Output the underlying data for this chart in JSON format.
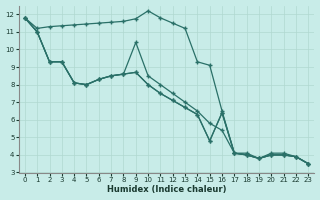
{
  "xlabel": "Humidex (Indice chaleur)",
  "bg_color": "#c8ece8",
  "line_color": "#2a7068",
  "grid_color": "#b0d8d0",
  "xlim": [
    -0.5,
    23.5
  ],
  "ylim": [
    3,
    12.5
  ],
  "xticks": [
    0,
    1,
    2,
    3,
    4,
    5,
    6,
    7,
    8,
    9,
    10,
    11,
    12,
    13,
    14,
    15,
    16,
    17,
    18,
    19,
    20,
    21,
    22,
    23
  ],
  "yticks": [
    3,
    4,
    5,
    6,
    7,
    8,
    9,
    10,
    11,
    12
  ],
  "line1_x": [
    0,
    1,
    2,
    3,
    4,
    5,
    6,
    7,
    8,
    9,
    10,
    11,
    12,
    13,
    14,
    15,
    16,
    17,
    18,
    19,
    20,
    21,
    22,
    23
  ],
  "line1_y": [
    11.8,
    11.2,
    11.3,
    11.35,
    11.4,
    11.45,
    11.5,
    11.55,
    11.6,
    11.75,
    12.2,
    11.8,
    11.5,
    11.2,
    9.3,
    9.1,
    6.5,
    4.1,
    4.1,
    3.8,
    4.1,
    4.1,
    3.9,
    3.5
  ],
  "line2_x": [
    0,
    1,
    2,
    3,
    4,
    5,
    6,
    7,
    8,
    9,
    10,
    11,
    12,
    13,
    14,
    15,
    16,
    17,
    18,
    19,
    20,
    21,
    22,
    23
  ],
  "line2_y": [
    11.8,
    11.0,
    9.3,
    9.3,
    8.1,
    8.0,
    8.3,
    8.5,
    8.6,
    8.7,
    8.0,
    7.5,
    7.1,
    6.7,
    6.3,
    4.8,
    6.4,
    4.1,
    4.0,
    3.8,
    4.0,
    4.0,
    3.9,
    3.5
  ],
  "line3_x": [
    0,
    1,
    2,
    3,
    4,
    5,
    6,
    7,
    8,
    9,
    10,
    11,
    12,
    13,
    14,
    15,
    16,
    17,
    18,
    19,
    20,
    21,
    22,
    23
  ],
  "line3_y": [
    11.8,
    11.0,
    9.3,
    9.3,
    8.1,
    8.0,
    8.3,
    8.5,
    8.6,
    10.4,
    8.5,
    8.0,
    7.5,
    7.0,
    6.5,
    5.8,
    5.4,
    4.1,
    4.0,
    3.8,
    4.0,
    4.0,
    3.9,
    3.5
  ],
  "line4_x": [
    0,
    1,
    2,
    3,
    4,
    5,
    6,
    7,
    8,
    9,
    10,
    11,
    12,
    13,
    14,
    15,
    16,
    17,
    18,
    19,
    20,
    21,
    22,
    23
  ],
  "line4_y": [
    11.8,
    11.0,
    9.3,
    9.3,
    8.1,
    8.0,
    8.3,
    8.5,
    8.6,
    8.7,
    8.0,
    7.5,
    7.1,
    6.7,
    6.3,
    4.8,
    6.4,
    4.1,
    4.0,
    3.8,
    4.0,
    4.0,
    3.9,
    3.5
  ]
}
